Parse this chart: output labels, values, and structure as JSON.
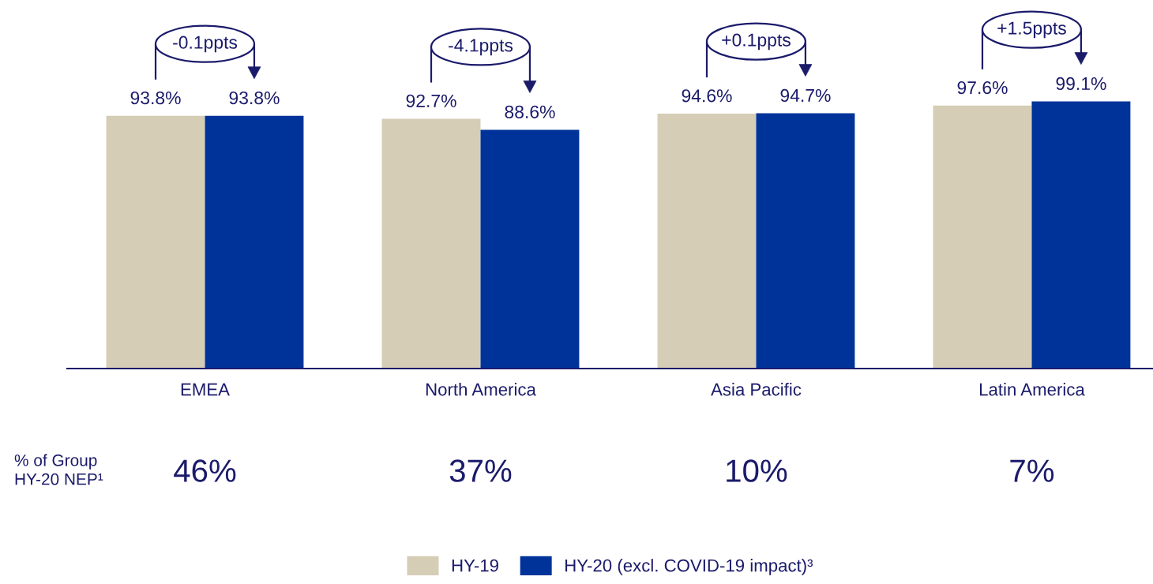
{
  "chart_data": {
    "type": "bar",
    "categories": [
      "EMEA",
      "North America",
      "Asia Pacific",
      "Latin America"
    ],
    "series": [
      {
        "name": "HY-19",
        "color": "#d5cdb5",
        "values": [
          93.8,
          92.7,
          94.6,
          97.6
        ],
        "value_labels": [
          "93.8%",
          "92.7%",
          "94.6%",
          "97.6%"
        ]
      },
      {
        "name": "HY-20 (excl. COVID-19 impact)³",
        "color": "#003399",
        "values": [
          93.8,
          88.6,
          94.7,
          99.1
        ],
        "value_labels": [
          "93.8%",
          "88.6%",
          "94.7%",
          "99.1%"
        ]
      }
    ],
    "annotations": [
      "-0.1ppts",
      "-4.1ppts",
      "+0.1ppts",
      "+1.5ppts",
      "% of Group\nHY-20 NEP¹",
      "46%",
      "37%",
      "10%",
      "7%"
    ],
    "legend": "bottom",
    "tick_labels": "x"
  }
}
